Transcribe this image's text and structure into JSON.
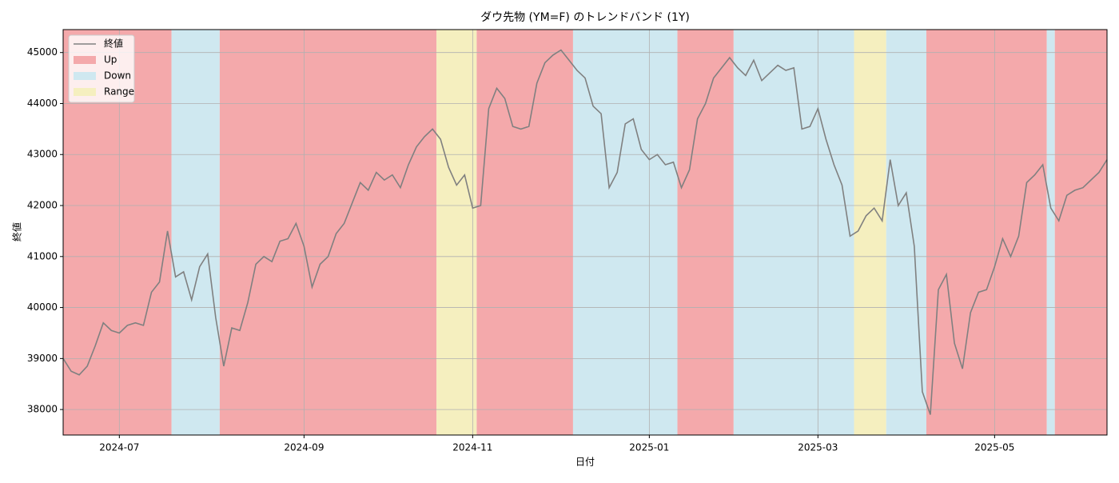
{
  "chart_data": {
    "type": "line",
    "title": "ダウ先物 (YM=F) のトレンドバンド (1Y)",
    "xlabel": "日付",
    "ylabel": "終値",
    "ylim": [
      37500,
      45450
    ],
    "yticks": [
      38000,
      39000,
      40000,
      41000,
      42000,
      43000,
      44000,
      45000
    ],
    "grid": true,
    "legend": "upper left",
    "categories": [
      null,
      null,
      null,
      null,
      null,
      null,
      null,
      "2024-07",
      null,
      null,
      null,
      null,
      null,
      null,
      null,
      null,
      null,
      null,
      null,
      null,
      null,
      null,
      null,
      null,
      null,
      null,
      null,
      null,
      null,
      null,
      "2024-09",
      null,
      null,
      null,
      null,
      null,
      null,
      null,
      null,
      null,
      null,
      null,
      null,
      null,
      null,
      null,
      null,
      null,
      null,
      null,
      null,
      "2024-11",
      null,
      null,
      null,
      null,
      null,
      null,
      null,
      null,
      null,
      null,
      null,
      null,
      null,
      null,
      null,
      null,
      null,
      null,
      null,
      null,
      null,
      "2025-01",
      null,
      null,
      null,
      null,
      null,
      null,
      null,
      null,
      null,
      null,
      null,
      null,
      null,
      null,
      null,
      null,
      null,
      null,
      null,
      null,
      "2025-03",
      null,
      null,
      null,
      null,
      null,
      null,
      null,
      null,
      null,
      null,
      null,
      null,
      null,
      null,
      null,
      null,
      null,
      null,
      null,
      null,
      null,
      "2025-05",
      null,
      null,
      null,
      null,
      null,
      null,
      null,
      null,
      null,
      null,
      null,
      null,
      null,
      null
    ],
    "series": [
      {
        "name": "終値",
        "color": "#808080",
        "values": [
          39000,
          38750,
          38680,
          38850,
          39250,
          39700,
          39550,
          39500,
          39650,
          39700,
          39650,
          40300,
          40500,
          41500,
          40600,
          40700,
          40150,
          40800,
          41050,
          39800,
          38850,
          39600,
          39550,
          40100,
          40850,
          41000,
          40900,
          41300,
          41350,
          41650,
          41200,
          40400,
          40850,
          41000,
          41450,
          41650,
          42050,
          42450,
          42300,
          42650,
          42500,
          42600,
          42350,
          42800,
          43150,
          43350,
          43500,
          43300,
          42750,
          42400,
          42600,
          41950,
          42000,
          43900,
          44300,
          44100,
          43550,
          43500,
          43550,
          44400,
          44800,
          44950,
          45050,
          44850,
          44650,
          44500,
          43950,
          43800,
          42350,
          42650,
          43600,
          43700,
          43100,
          42900,
          43000,
          42800,
          42850,
          42350,
          42700,
          43700,
          44000,
          44500,
          44700,
          44900,
          44700,
          44550,
          44850,
          44450,
          44600,
          44750,
          44650,
          44700,
          43500,
          43550,
          43900,
          43300,
          42800,
          42400,
          41400,
          41500,
          41800,
          41950,
          41700,
          42900,
          42000,
          42250,
          41200,
          38350,
          37900,
          40350,
          40650,
          39300,
          38800,
          39900,
          40300,
          40350,
          40800,
          41350,
          41000,
          41400,
          42450,
          42600,
          42800,
          41950,
          41700,
          42200,
          42300,
          42350,
          42500,
          42650,
          42900
        ]
      }
    ],
    "bands": [
      {
        "name": "Up",
        "color": "#f4a9ab"
      },
      {
        "name": "Down",
        "color": "#cfe8f0"
      },
      {
        "name": "Range",
        "color": "#f5efbf"
      }
    ],
    "regimes": [
      "Up",
      "Up",
      "Up",
      "Up",
      "Up",
      "Up",
      "Up",
      "Up",
      "Up",
      "Up",
      "Up",
      "Up",
      "Up",
      "Up",
      "Down",
      "Down",
      "Down",
      "Down",
      "Down",
      "Down",
      "Up",
      "Up",
      "Up",
      "Up",
      "Up",
      "Up",
      "Up",
      "Up",
      "Up",
      "Up",
      "Up",
      "Up",
      "Up",
      "Up",
      "Up",
      "Up",
      "Up",
      "Up",
      "Up",
      "Up",
      "Up",
      "Up",
      "Up",
      "Up",
      "Up",
      "Up",
      "Up",
      "Range",
      "Range",
      "Range",
      "Range",
      "Range",
      "Up",
      "Up",
      "Up",
      "Up",
      "Up",
      "Up",
      "Up",
      "Up",
      "Up",
      "Up",
      "Up",
      "Up",
      "Down",
      "Down",
      "Down",
      "Down",
      "Down",
      "Down",
      "Down",
      "Down",
      "Down",
      "Down",
      "Down",
      "Down",
      "Down",
      "Up",
      "Up",
      "Up",
      "Up",
      "Up",
      "Up",
      "Up",
      "Down",
      "Down",
      "Down",
      "Down",
      "Down",
      "Down",
      "Down",
      "Down",
      "Down",
      "Down",
      "Down",
      "Down",
      "Down",
      "Down",
      "Down",
      "Range",
      "Range",
      "Range",
      "Range",
      "Down",
      "Down",
      "Down",
      "Down",
      "Down",
      "Up",
      "Up",
      "Up",
      "Up",
      "Up",
      "Up",
      "Up",
      "Up",
      "Up",
      "Up",
      "Up",
      "Up",
      "Up",
      "Up",
      "Up",
      "Down",
      "Up",
      "Up",
      "Up",
      "Up",
      "Up",
      "Up",
      "Up"
    ]
  }
}
